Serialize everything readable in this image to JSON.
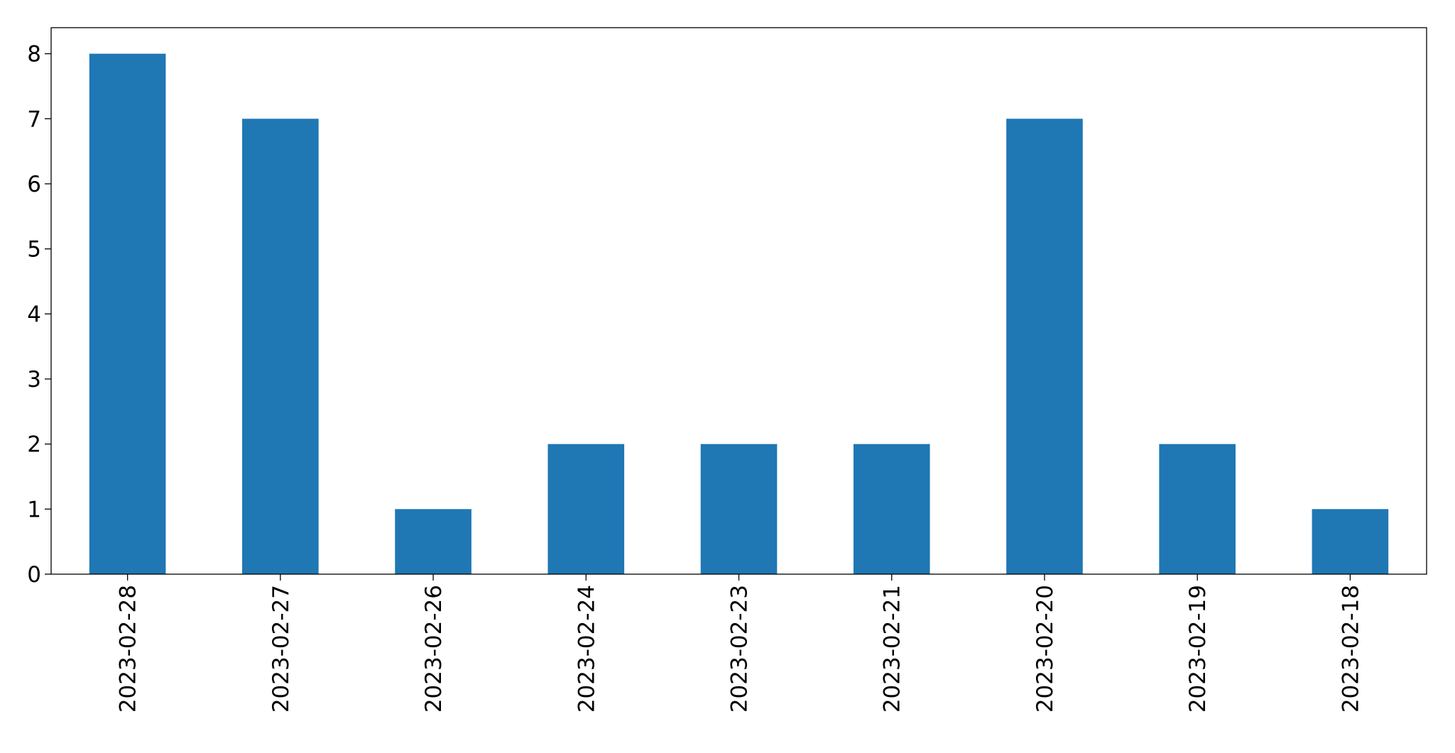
{
  "chart_data": {
    "type": "bar",
    "categories": [
      "2023-02-28",
      "2023-02-27",
      "2023-02-26",
      "2023-02-24",
      "2023-02-23",
      "2023-02-21",
      "2023-02-20",
      "2023-02-19",
      "2023-02-18"
    ],
    "values": [
      8,
      7,
      1,
      2,
      2,
      2,
      7,
      2,
      1
    ],
    "color": "#1f77b4",
    "ylim": [
      0,
      8.4
    ],
    "yticks": [
      0,
      1,
      2,
      3,
      4,
      5,
      6,
      7,
      8
    ],
    "grid": false
  }
}
